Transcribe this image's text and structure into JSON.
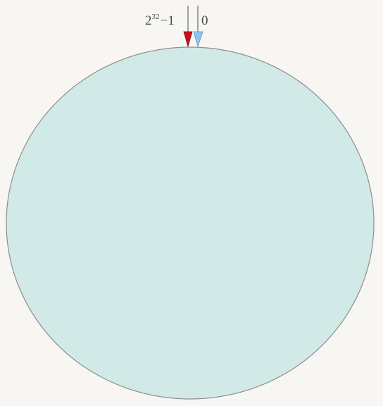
{
  "ring": {
    "fill_color": "#d1e9e7",
    "stroke_color": "#8e8e8e"
  },
  "markers": {
    "max": {
      "base": "2",
      "exponent": "32",
      "suffix": "−1",
      "color": "#c8101a"
    },
    "zero": {
      "label": "0",
      "color": "#8ec5ec"
    }
  }
}
